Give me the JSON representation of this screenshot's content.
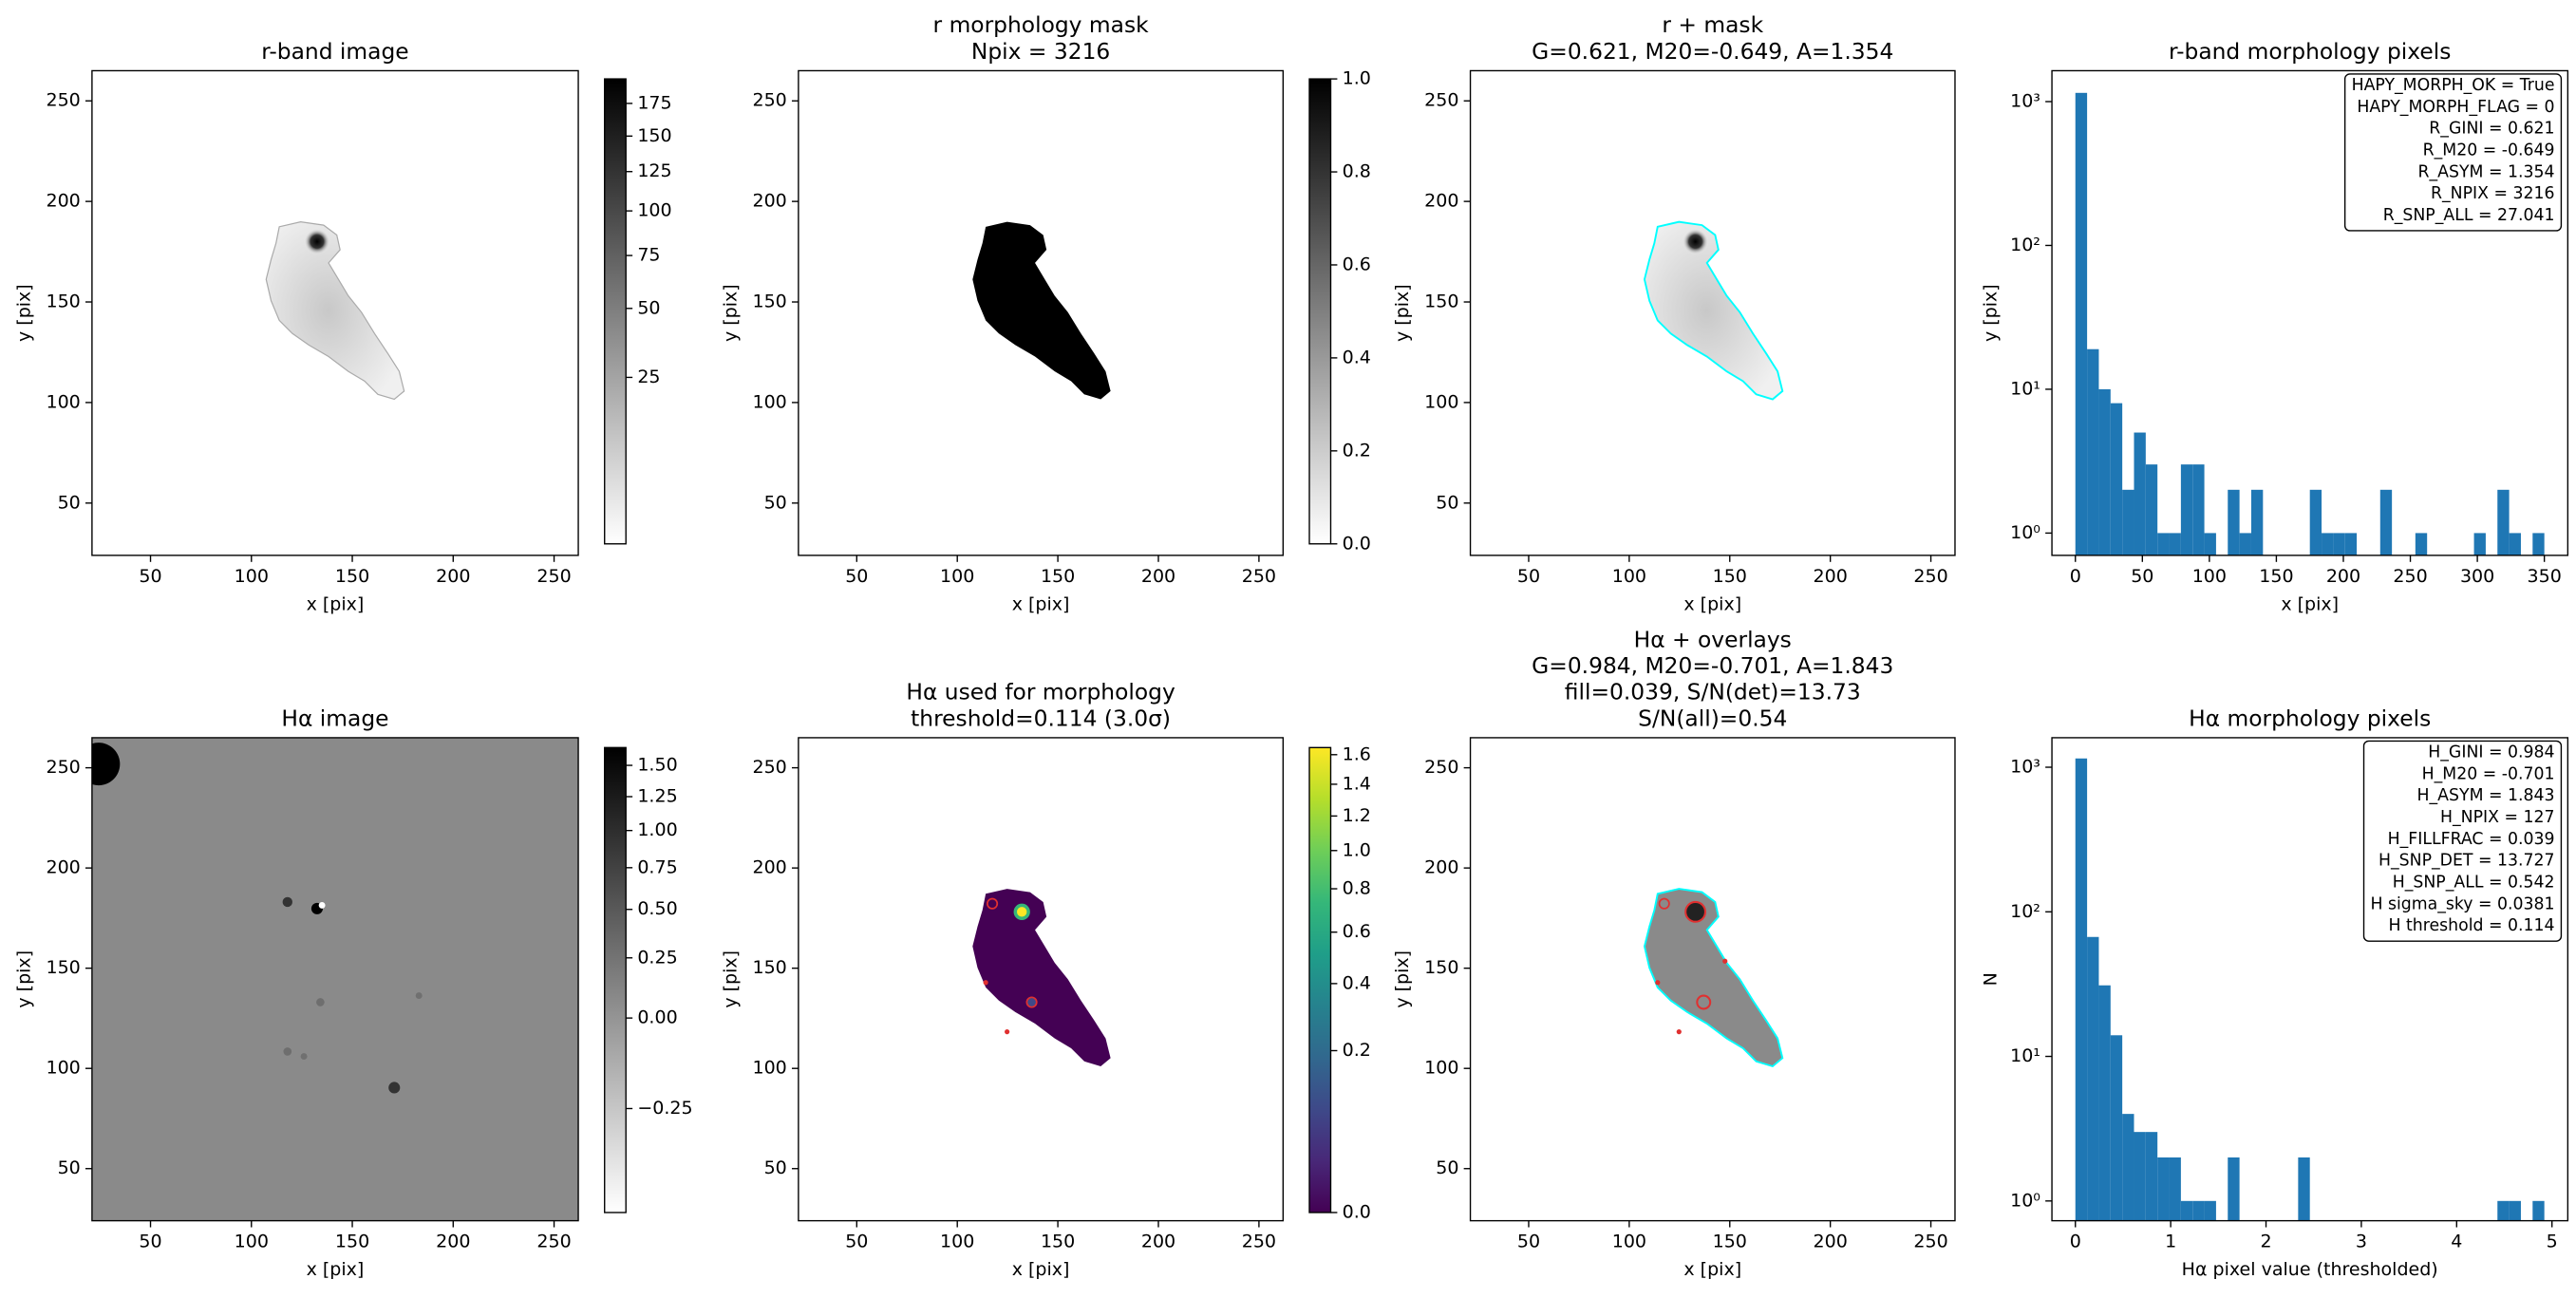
{
  "chart_data": [
    {
      "type": "image",
      "title": [
        "r-band image"
      ],
      "xlabel": "x [pix]",
      "ylabel": "y [pix]",
      "xlim": [
        21,
        262
      ],
      "ylim": [
        24,
        265
      ],
      "xticks": [
        50,
        100,
        150,
        200,
        250
      ],
      "yticks": [
        50,
        100,
        150,
        200,
        250
      ],
      "colorbar": {
        "cmap": "gray_r",
        "scale": "sqrt",
        "clim": [
          0,
          195
        ],
        "ticks": [
          25,
          50,
          75,
          100,
          125,
          150,
          175
        ]
      }
    },
    {
      "type": "image",
      "title": [
        "r morphology mask",
        "Npix = 3216"
      ],
      "xlabel": "x [pix]",
      "ylabel": "y [pix]",
      "xlim": [
        21,
        262
      ],
      "ylim": [
        24,
        265
      ],
      "xticks": [
        50,
        100,
        150,
        200,
        250
      ],
      "yticks": [
        50,
        100,
        150,
        200,
        250
      ],
      "colorbar": {
        "cmap": "gray_r",
        "scale": "linear",
        "clim": [
          0,
          1
        ],
        "ticks": [
          {
            "value": 0,
            "label": "0.0"
          },
          0.2,
          0.4,
          0.6,
          0.8,
          {
            "value": 1,
            "label": "1.0"
          }
        ]
      }
    },
    {
      "type": "image",
      "title": [
        "r + mask",
        "G=0.621, M20=-0.649, A=1.354"
      ],
      "xlabel": "x [pix]",
      "ylabel": "y [pix]",
      "xlim": [
        21,
        262
      ],
      "ylim": [
        24,
        265
      ],
      "xticks": [
        50,
        100,
        150,
        200,
        250
      ],
      "yticks": [
        50,
        100,
        150,
        200,
        250
      ]
    },
    {
      "type": "histogram",
      "title": [
        "r-band morphology pixels"
      ],
      "xlabel": "x [pix]",
      "ylabel": "y [pix]",
      "color": "#1f77b4",
      "yscale": "log",
      "xlim": [
        -17.5,
        367.5
      ],
      "ylim": [
        0.7,
        1640
      ],
      "xticks": [
        0,
        50,
        100,
        150,
        200,
        250,
        300,
        350
      ],
      "yticks": [
        {
          "value": 1,
          "label": "10⁰"
        },
        {
          "value": 10,
          "label": "10¹"
        },
        {
          "value": 100,
          "label": "10²"
        },
        {
          "value": 1000,
          "label": "10³"
        }
      ],
      "bins": [
        0,
        8.75,
        17.5,
        26.25,
        35,
        43.75,
        52.5,
        61.25,
        70,
        78.75,
        87.5,
        96.25,
        105,
        113.75,
        122.5,
        131.25,
        140,
        148.75,
        157.5,
        166.25,
        175,
        183.75,
        192.5,
        201.25,
        210,
        218.75,
        227.5,
        236.25,
        245,
        253.75,
        262.5,
        271.25,
        280,
        288.75,
        297.5,
        306.25,
        315,
        323.75,
        332.5,
        341.25,
        350
      ],
      "counts": [
        1150,
        19,
        10,
        8,
        2,
        5,
        3,
        1,
        1,
        3,
        3,
        1,
        0,
        2,
        1,
        2,
        0,
        0,
        0,
        0,
        2,
        1,
        1,
        1,
        0,
        0,
        2,
        0,
        0,
        1,
        0,
        0,
        0,
        0,
        1,
        0,
        2,
        1,
        0,
        1
      ],
      "annotation": [
        "HAPY_MORPH_OK = True",
        "HAPY_MORPH_FLAG = 0",
        "R_GINI = 0.621",
        "R_M20 = -0.649",
        "R_ASYM = 1.354",
        "R_NPIX = 3216",
        "R_SNP_ALL = 27.041"
      ]
    },
    {
      "type": "image",
      "title": [
        "Hα image"
      ],
      "xlabel": "x [pix]",
      "ylabel": "y [pix]",
      "xlim": [
        21,
        262
      ],
      "ylim": [
        24,
        265
      ],
      "xticks": [
        50,
        100,
        150,
        200,
        250
      ],
      "yticks": [
        50,
        100,
        150,
        200,
        250
      ],
      "colorbar": {
        "cmap": "gray_r",
        "scale": "sqrt",
        "clim": [
          -0.35,
          1.65
        ],
        "ticks": [
          {
            "value": 1.5,
            "label": "1.50"
          },
          1.25,
          {
            "value": 1,
            "label": "1.00"
          },
          0.75,
          {
            "value": 0.5,
            "label": "0.50"
          },
          0.25,
          {
            "value": 0,
            "label": "0.00"
          },
          {
            "value": -0.25,
            "label": "−0.25"
          }
        ]
      }
    },
    {
      "type": "image",
      "title": [
        "Hα used for morphology",
        "threshold=0.114 (3.0σ)"
      ],
      "xlabel": "x [pix]",
      "ylabel": "y [pix]",
      "xlim": [
        21,
        262
      ],
      "ylim": [
        24,
        265
      ],
      "xticks": [
        50,
        100,
        150,
        200,
        250
      ],
      "yticks": [
        50,
        100,
        150,
        200,
        250
      ],
      "colorbar": {
        "cmap": "viridis",
        "scale": "sqrt",
        "clim": [
          0,
          1.65
        ],
        "ticks": [
          {
            "value": 0,
            "label": "0.0"
          },
          0.2,
          0.4,
          0.6,
          0.8,
          {
            "value": 1,
            "label": "1.0"
          },
          1.2,
          1.4,
          1.6
        ]
      }
    },
    {
      "type": "image",
      "title": [
        "Hα + overlays",
        "G=0.984, M20=-0.701, A=1.843",
        "fill=0.039, S/N(det)=13.73",
        "S/N(all)=0.54"
      ],
      "xlabel": "x [pix]",
      "ylabel": "y [pix]",
      "xlim": [
        21,
        262
      ],
      "ylim": [
        24,
        265
      ],
      "xticks": [
        50,
        100,
        150,
        200,
        250
      ],
      "yticks": [
        50,
        100,
        150,
        200,
        250
      ]
    },
    {
      "type": "histogram",
      "title": [
        "Hα morphology pixels"
      ],
      "xlabel": "Hα pixel value (thresholded)",
      "ylabel": "N",
      "color": "#1f77b4",
      "yscale": "log",
      "xlim": [
        -0.246,
        5.166
      ],
      "ylim": [
        0.73,
        1600
      ],
      "xticks": [
        0,
        1,
        2,
        3,
        4,
        5
      ],
      "yticks": [
        {
          "value": 1,
          "label": "10⁰"
        },
        {
          "value": 10,
          "label": "10¹"
        },
        {
          "value": 100,
          "label": "10²"
        },
        {
          "value": 1000,
          "label": "10³"
        }
      ],
      "bins": [
        0,
        0.123,
        0.246,
        0.369,
        0.492,
        0.615,
        0.738,
        0.861,
        0.984,
        1.107,
        1.23,
        1.353,
        1.476,
        1.599,
        1.722,
        1.845,
        1.968,
        2.091,
        2.214,
        2.337,
        2.46,
        2.583,
        2.706,
        2.829,
        2.952,
        3.075,
        3.198,
        3.321,
        3.444,
        3.567,
        3.69,
        3.813,
        3.936,
        4.059,
        4.182,
        4.305,
        4.428,
        4.551,
        4.674,
        4.797,
        4.92
      ],
      "counts": [
        1150,
        67,
        31,
        14,
        4,
        3,
        3,
        2,
        2,
        1,
        1,
        1,
        0,
        2,
        0,
        0,
        0,
        0,
        0,
        2,
        0,
        0,
        0,
        0,
        0,
        0,
        0,
        0,
        0,
        0,
        0,
        0,
        0,
        0,
        0,
        0,
        1,
        1,
        0,
        1
      ],
      "annotation": [
        "H_GINI = 0.984",
        "H_M20 = -0.701",
        "H_ASYM = 1.843",
        "H_NPIX = 127",
        "H_FILLFRAC = 0.039",
        "H_SNP_DET = 13.727",
        "H_SNP_ALL = 0.542",
        "H sigma_sky = 0.0381",
        "H threshold = 0.114"
      ]
    }
  ]
}
